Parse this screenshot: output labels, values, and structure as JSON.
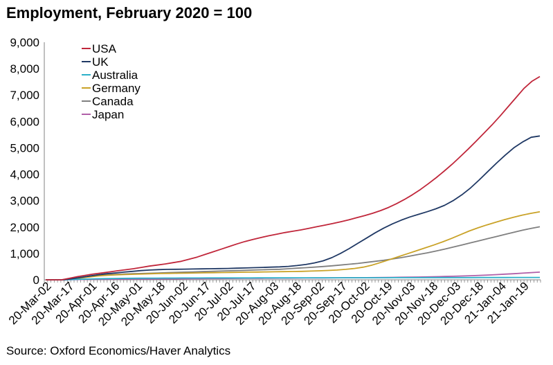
{
  "title": "Employment, February 2020 = 100",
  "source": "Source: Oxford Economics/Haver Analytics",
  "chart_data": {
    "type": "line",
    "title": "Employment, February 2020 = 100",
    "xlabel": "",
    "ylabel": "",
    "ylim": [
      0,
      9000
    ],
    "yticks": [
      0,
      1000,
      2000,
      3000,
      4000,
      5000,
      6000,
      7000,
      8000,
      9000
    ],
    "ytick_labels": [
      "0",
      "1,000",
      "2,000",
      "3,000",
      "4,000",
      "5,000",
      "6,000",
      "7,000",
      "8,000",
      "9,000"
    ],
    "x_tick_labels": [
      "20-Mar-02",
      "20-Mar-17",
      "20-Apr-01",
      "20-Apr-16",
      "20-May-01",
      "20-May-18",
      "20-Jun-02",
      "20-Jun-17",
      "20-Jul-02",
      "20-Jul-17",
      "20-Aug-03",
      "20-Aug-18",
      "20-Sep-02",
      "20-Sep-17",
      "20-Oct-02",
      "20-Oct-19",
      "20-Nov-03",
      "20-Nov-18",
      "20-Dec-03",
      "20-Dec-18",
      "21-Jan-04",
      "21-Jan-19"
    ],
    "grid": false,
    "legend_position": "top-left",
    "series": [
      {
        "name": "USA",
        "color": "#c0263a",
        "values": [
          0,
          0,
          0,
          60,
          120,
          170,
          220,
          260,
          300,
          340,
          380,
          420,
          470,
          520,
          560,
          600,
          650,
          700,
          780,
          860,
          960,
          1060,
          1160,
          1260,
          1360,
          1450,
          1530,
          1600,
          1670,
          1730,
          1790,
          1840,
          1890,
          1950,
          2010,
          2070,
          2130,
          2200,
          2270,
          2350,
          2430,
          2520,
          2620,
          2740,
          2880,
          3040,
          3220,
          3420,
          3640,
          3870,
          4120,
          4380,
          4660,
          4950,
          5250,
          5560,
          5870,
          6200,
          6550,
          6900,
          7250,
          7520,
          7700
        ]
      },
      {
        "name": "UK",
        "color": "#1f3864",
        "values": [
          0,
          0,
          0,
          40,
          90,
          140,
          190,
          230,
          260,
          290,
          320,
          350,
          370,
          385,
          395,
          400,
          405,
          410,
          415,
          420,
          425,
          430,
          440,
          450,
          460,
          470,
          480,
          490,
          510,
          540,
          580,
          640,
          720,
          840,
          1000,
          1180,
          1380,
          1580,
          1780,
          1960,
          2120,
          2260,
          2380,
          2480,
          2580,
          2690,
          2820,
          3000,
          3220,
          3480,
          3780,
          4100,
          4420,
          4720,
          5000,
          5220,
          5400,
          5450
        ]
      },
      {
        "name": "Australia",
        "color": "#2bb0c8",
        "values": [
          0,
          0,
          0,
          10,
          20,
          30,
          40,
          45,
          50,
          55,
          58,
          60,
          62,
          64,
          65,
          66,
          67,
          68,
          69,
          70,
          70,
          71,
          71,
          72,
          72,
          73,
          73,
          74,
          74,
          75,
          75,
          76,
          76,
          77,
          77,
          78,
          78,
          79,
          79,
          80,
          80,
          81,
          81,
          82,
          82,
          83,
          83,
          84,
          84,
          85,
          85,
          86,
          86,
          87,
          87,
          88,
          88,
          89,
          90
        ]
      },
      {
        "name": "Germany",
        "color": "#c9a227",
        "values": [
          0,
          0,
          0,
          30,
          70,
          110,
          150,
          170,
          185,
          200,
          210,
          220,
          230,
          240,
          245,
          250,
          255,
          260,
          265,
          270,
          275,
          280,
          285,
          290,
          295,
          300,
          305,
          310,
          315,
          320,
          330,
          340,
          355,
          370,
          395,
          430,
          480,
          560,
          660,
          770,
          880,
          990,
          1100,
          1210,
          1320,
          1440,
          1570,
          1710,
          1850,
          1970,
          2080,
          2180,
          2280,
          2370,
          2450,
          2520,
          2580
        ]
      },
      {
        "name": "Canada",
        "color": "#7f7f7f",
        "values": [
          0,
          0,
          0,
          40,
          90,
          130,
          170,
          190,
          205,
          220,
          230,
          240,
          250,
          260,
          270,
          280,
          290,
          300,
          310,
          320,
          330,
          340,
          350,
          360,
          370,
          380,
          390,
          400,
          420,
          440,
          460,
          480,
          505,
          530,
          560,
          590,
          620,
          660,
          700,
          740,
          790,
          840,
          900,
          960,
          1020,
          1090,
          1160,
          1240,
          1320,
          1400,
          1480,
          1560,
          1640,
          1720,
          1800,
          1880,
          1950,
          2010
        ]
      },
      {
        "name": "Japan",
        "color": "#b05fa8",
        "values": [
          0,
          0,
          0,
          5,
          10,
          15,
          20,
          22,
          24,
          26,
          28,
          30,
          32,
          34,
          36,
          38,
          40,
          42,
          44,
          46,
          48,
          50,
          52,
          54,
          56,
          58,
          60,
          62,
          64,
          66,
          68,
          70,
          72,
          74,
          76,
          78,
          80,
          82,
          85,
          88,
          92,
          96,
          100,
          105,
          110,
          118,
          126,
          134,
          144,
          156,
          168,
          182,
          198,
          214,
          232,
          252,
          272,
          290
        ]
      }
    ]
  }
}
